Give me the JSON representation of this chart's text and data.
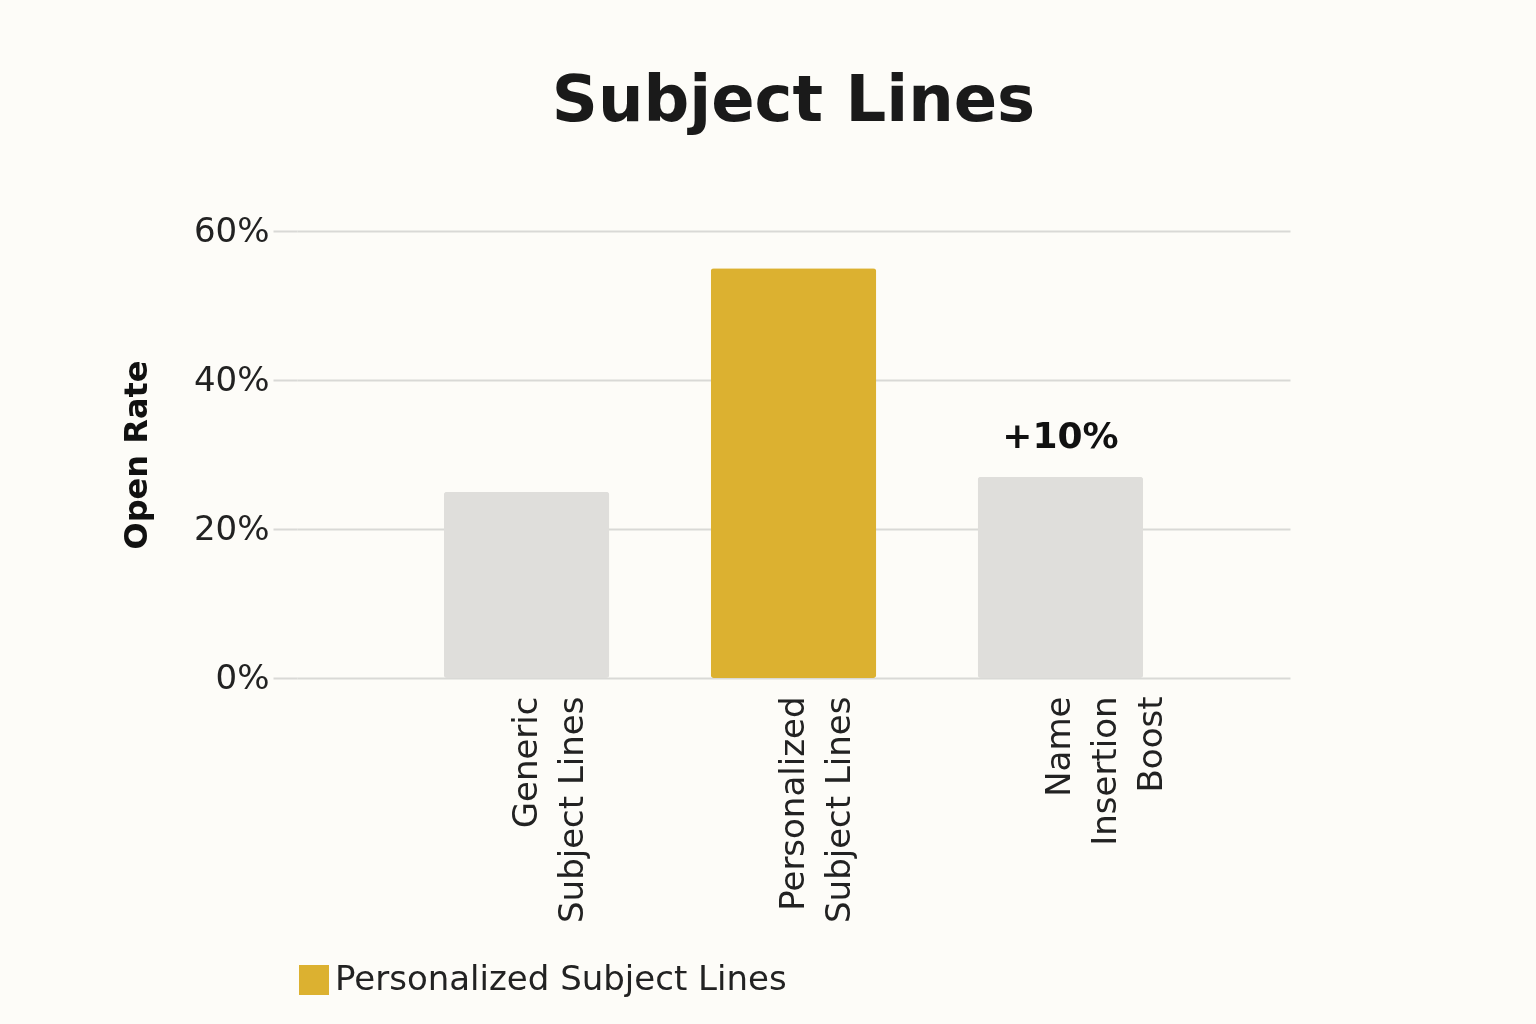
{
  "chart_data": {
    "type": "bar",
    "title": "Subject Lines",
    "ylabel": "Open Rate",
    "categories": [
      "Generic Subject Lines",
      "Personalized Subject Lines",
      "Name Insertion Boost"
    ],
    "series": [
      {
        "name": "Personalized Subject Lines",
        "color": "#dcb130",
        "values": [
          null,
          55,
          null
        ]
      },
      {
        "color": "#dfdedb",
        "values": [
          25,
          null,
          27
        ]
      }
    ],
    "stacked": true,
    "ylim": [
      0,
      60
    ],
    "yticks": [
      {
        "value": 0,
        "label": "0%"
      },
      {
        "value": 20,
        "label": "20%"
      },
      {
        "value": 40,
        "label": "40%"
      },
      {
        "value": 60,
        "label": "60%"
      }
    ],
    "grid": "y",
    "legend": "bottom",
    "annotations": [
      {
        "text": "+10%",
        "x": "Name Insertion Boost",
        "y": 27
      }
    ]
  }
}
